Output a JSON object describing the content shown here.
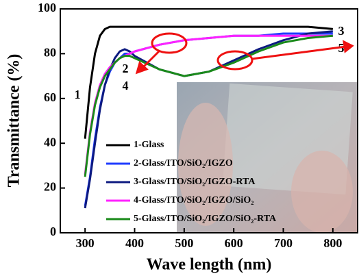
{
  "chart_data": {
    "type": "line",
    "xlabel": "Wave length (nm)",
    "ylabel": "Transmittance (%)",
    "x": [
      300,
      310,
      320,
      330,
      340,
      350,
      360,
      370,
      380,
      390,
      400,
      450,
      500,
      550,
      600,
      650,
      700,
      750,
      800
    ],
    "series": [
      {
        "name": "1-Glass",
        "color": "#000000",
        "values": [
          42,
          65,
          80,
          88,
          91,
          92,
          92,
          92,
          92,
          92,
          92,
          92,
          92,
          92,
          92,
          92,
          92,
          92,
          91
        ]
      },
      {
        "name": "2-Glass/ITO/SiO₂/IGZO",
        "color": "#1f3cff",
        "values": [
          12,
          25,
          42,
          56,
          66,
          72,
          76,
          78,
          80,
          80,
          81,
          84,
          86,
          87,
          88,
          88,
          89,
          89,
          89
        ]
      },
      {
        "name": "3-Glass/ITO/SiO₂/IGZO-RTA",
        "color": "#0d1a80",
        "values": [
          11,
          24,
          40,
          55,
          66,
          73,
          78,
          81,
          82,
          81,
          79,
          73,
          70,
          72,
          77,
          82,
          86,
          89,
          90
        ]
      },
      {
        "name": "4-Glass/ITO/SiO₂/IGZO/SiO₂",
        "color": "#ff22ff",
        "values": [
          26,
          45,
          58,
          66,
          71,
          74,
          76,
          78,
          79,
          80,
          81,
          84,
          86,
          87,
          88,
          88,
          88,
          88,
          88
        ]
      },
      {
        "name": "5-Glass/ITO/SiO₂/IGZO/SiO₂-RTA",
        "color": "#1a8a1a",
        "values": [
          25,
          44,
          57,
          65,
          70,
          73,
          76,
          78,
          79,
          79,
          78,
          73,
          70,
          72,
          76,
          81,
          85,
          87,
          88
        ]
      }
    ],
    "annotations": [
      "1",
      "2",
      "4",
      "3",
      "5"
    ],
    "xlim": [
      250,
      850
    ],
    "xticks": [
      300,
      400,
      500,
      600,
      700,
      800
    ],
    "ylim": [
      0,
      100
    ],
    "yticks": [
      0,
      20,
      40,
      60,
      80,
      100
    ]
  }
}
